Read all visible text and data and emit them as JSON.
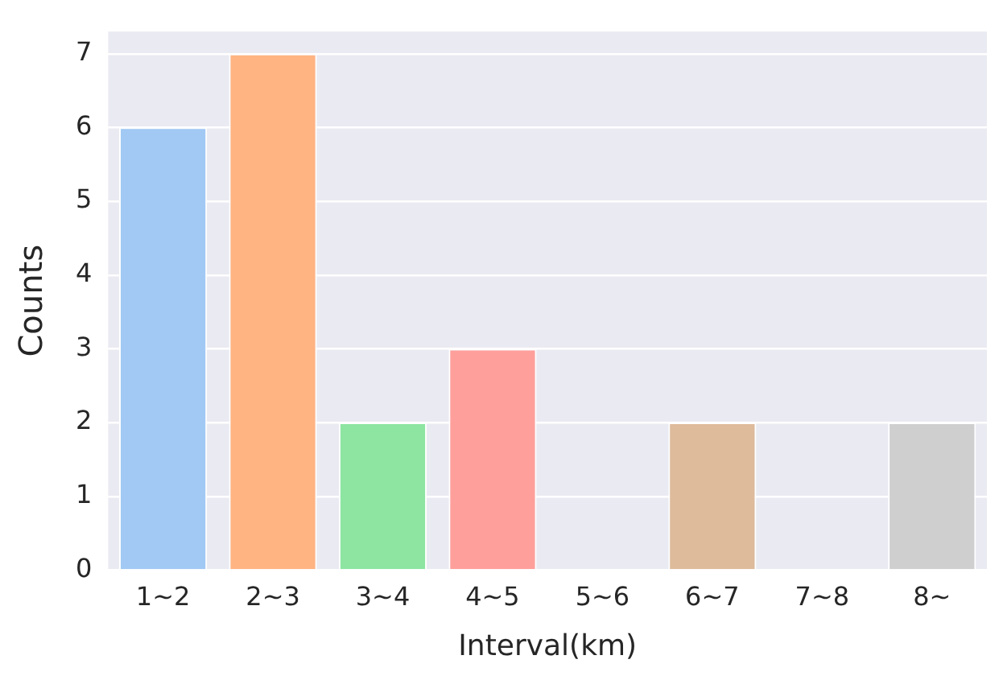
{
  "chart_data": {
    "type": "bar",
    "xlabel": "Interval(km)",
    "ylabel": "Counts",
    "categories": [
      "1~2",
      "2~3",
      "3~4",
      "4~5",
      "5~6",
      "6~7",
      "7~8",
      "8~"
    ],
    "values": [
      6,
      7,
      2,
      3,
      0,
      2,
      0,
      2
    ],
    "colors": [
      "#a1c9f4",
      "#ffb482",
      "#8de5a1",
      "#ff9f9b",
      "#d0bbff",
      "#debb9b",
      "#fab0e4",
      "#cfcfcf"
    ],
    "ylim": [
      0,
      7.3
    ],
    "yticks": [
      0,
      1,
      2,
      3,
      4,
      5,
      6,
      7
    ],
    "grid": "y"
  }
}
